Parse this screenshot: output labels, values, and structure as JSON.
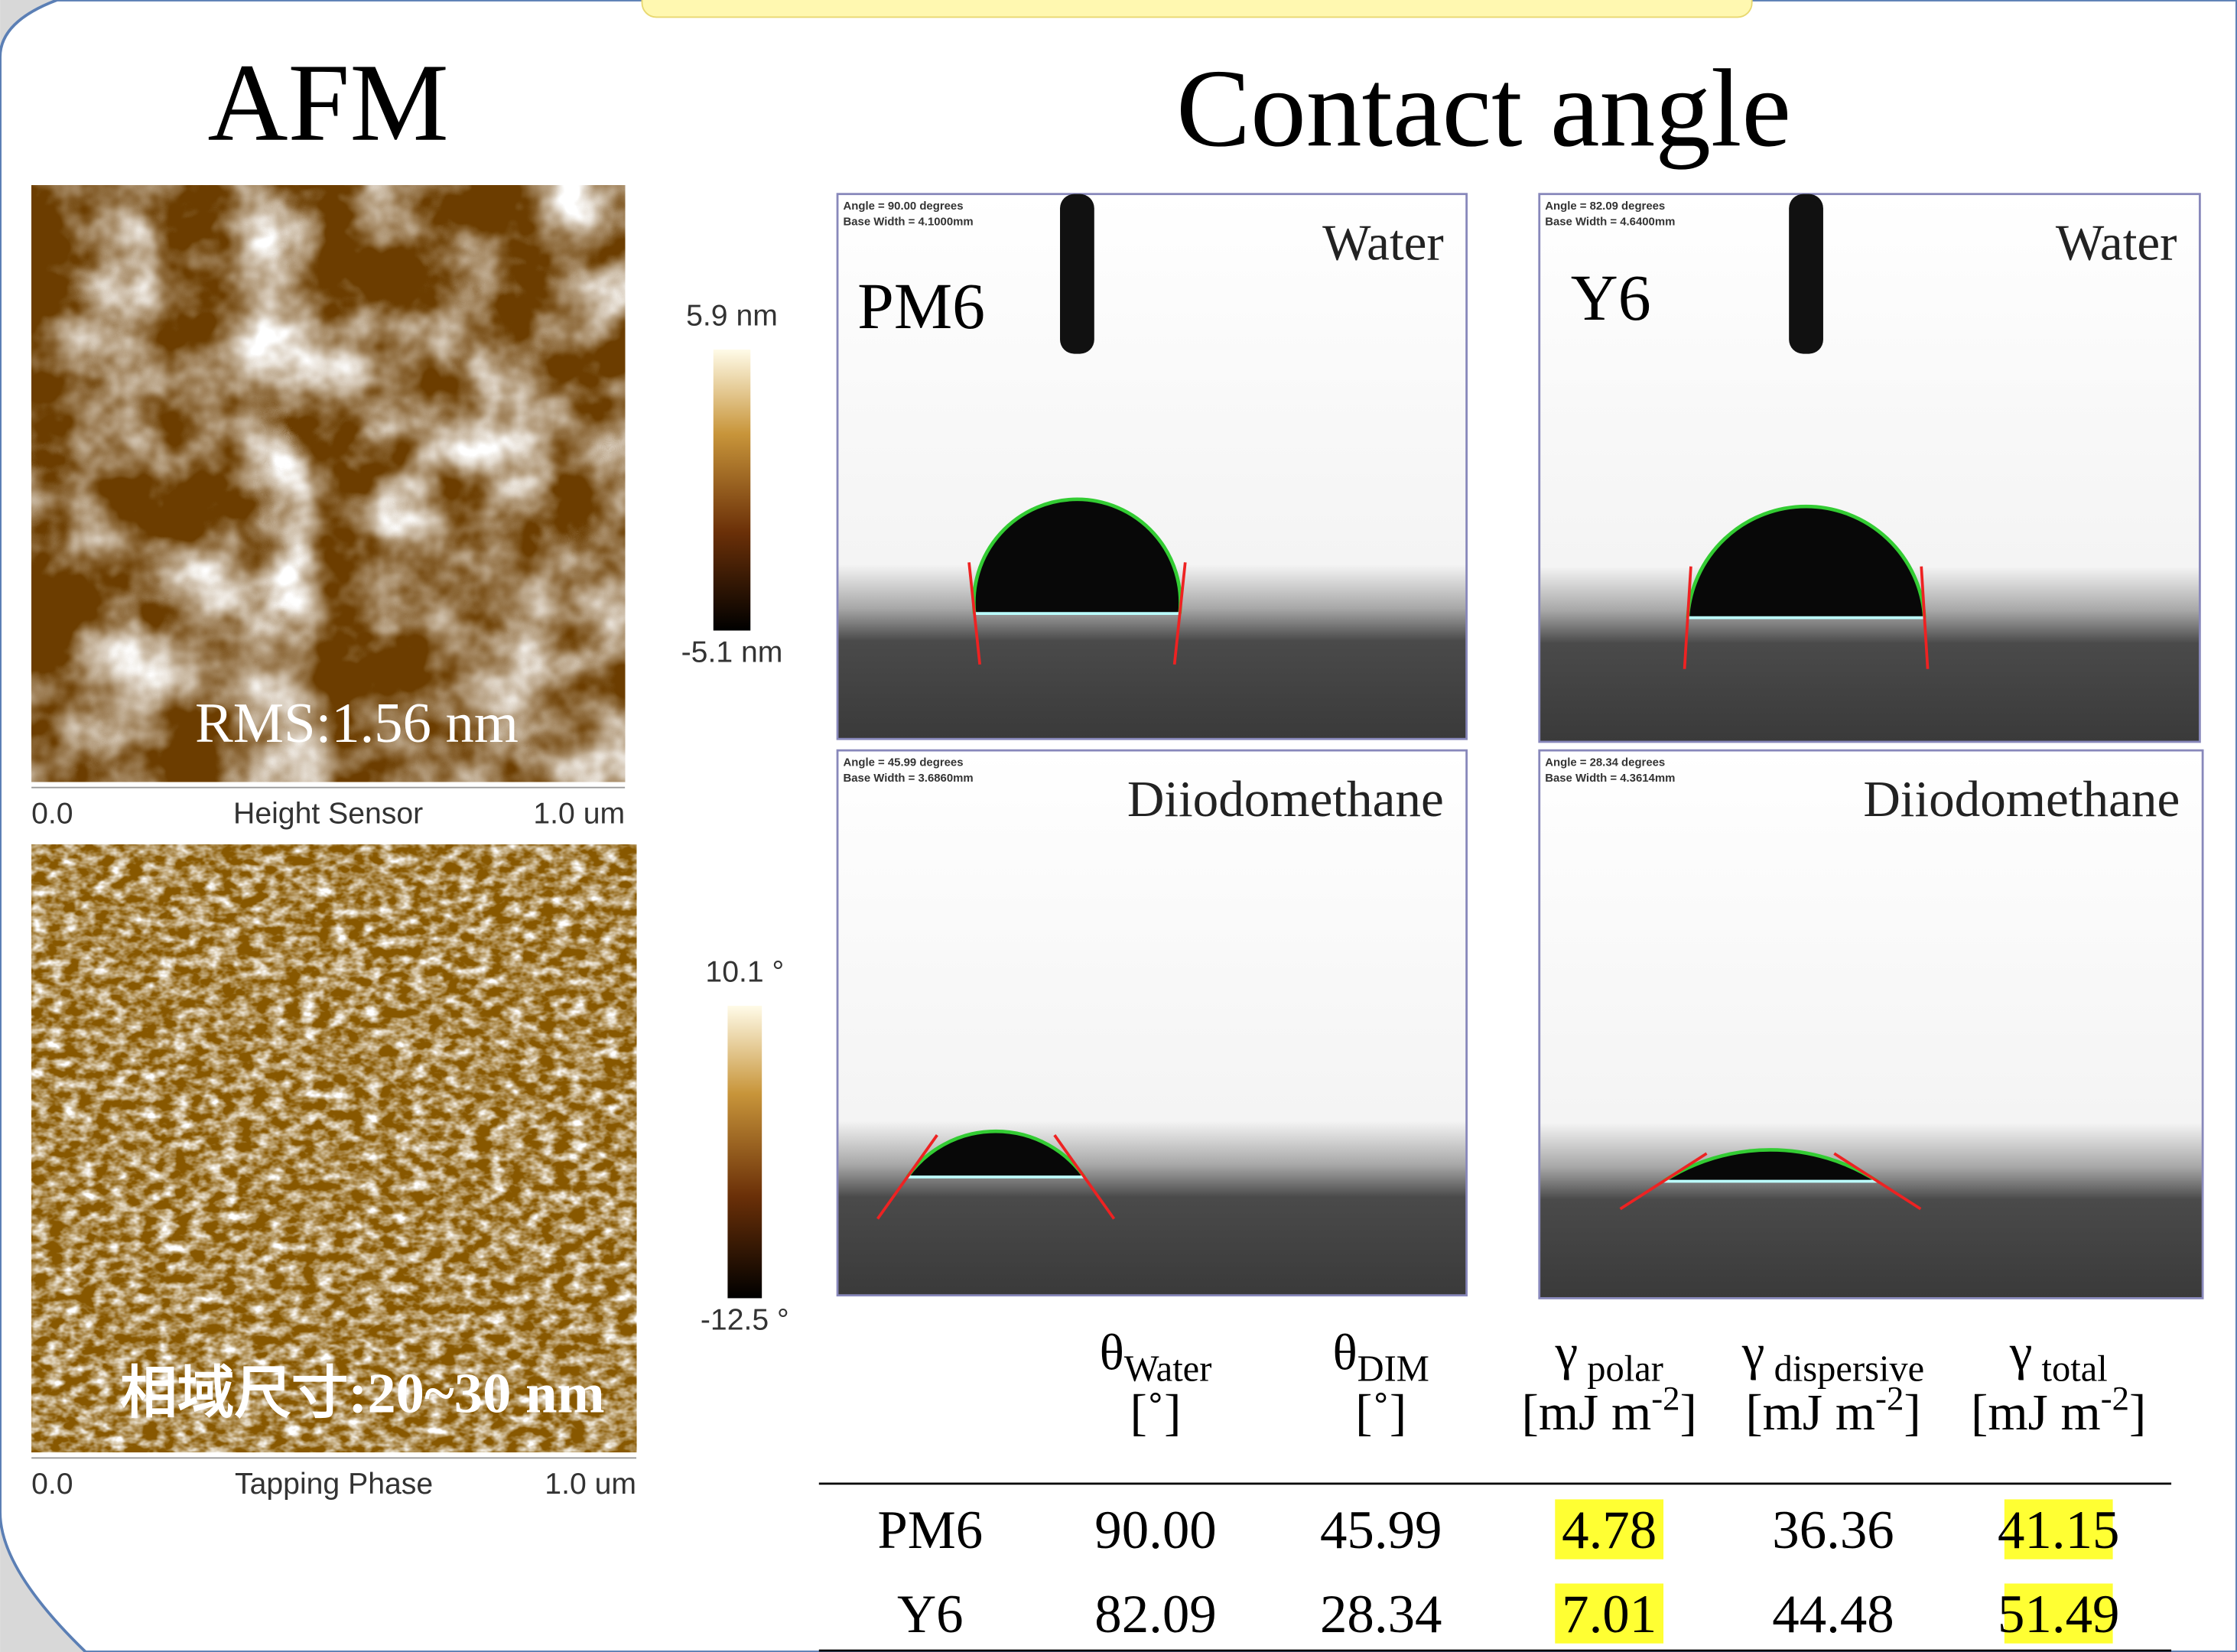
{
  "headings": {
    "afm": "AFM",
    "contact_angle": "Contact angle"
  },
  "afm": [
    {
      "annotation": "RMS:1.56 nm",
      "scale_max": "5.9 nm",
      "scale_min": "-5.1 nm",
      "axis_start": "0.0",
      "axis_title": "Height Sensor",
      "axis_end": "1.0 um"
    },
    {
      "annotation": "相域尺寸:20~30 nm",
      "scale_max": "10.1 °",
      "scale_min": "-12.5 °",
      "axis_start": "0.0",
      "axis_title": "Tapping Phase",
      "axis_end": "1.0 um"
    }
  ],
  "contact_angle": {
    "panels": [
      {
        "material": "PM6",
        "liquid": "Water",
        "readout": [
          "Angle = 90.00 degrees",
          "Base Width = 4.1000mm"
        ]
      },
      {
        "material": "Y6",
        "liquid": "Water",
        "readout": [
          "Angle = 82.09 degrees",
          "Base Width = 4.6400mm"
        ]
      },
      {
        "liquid": "Diiodomethane",
        "readout": [
          "Angle = 45.99 degrees",
          "Base Width = 3.6860mm"
        ]
      },
      {
        "liquid": "Diiodomethane",
        "readout": [
          "Angle = 28.34 degrees",
          "Base Width = 4.3614mm"
        ]
      }
    ]
  },
  "table": {
    "header": [
      {
        "symbol": "θ",
        "sub": "Water",
        "unit": "[˚]"
      },
      {
        "symbol": "θ",
        "sub": "DIM",
        "unit": "[˚]"
      },
      {
        "symbol": "γ",
        "sub": " polar",
        "unit": "[mJ m",
        "unit_sup": "-2",
        "unit_end": "]"
      },
      {
        "symbol": "γ",
        "sub": " dispersive",
        "unit": "[mJ m",
        "unit_sup": "-2",
        "unit_end": "]"
      },
      {
        "symbol": "γ",
        "sub": " total",
        "unit": "[mJ m",
        "unit_sup": "-2",
        "unit_end": "]"
      }
    ],
    "rows": [
      [
        "PM6",
        "90.00",
        "45.99",
        "4.78",
        "36.36",
        "41.15"
      ],
      [
        "Y6",
        "82.09",
        "28.34",
        "7.01",
        "44.48",
        "51.49"
      ]
    ]
  }
}
